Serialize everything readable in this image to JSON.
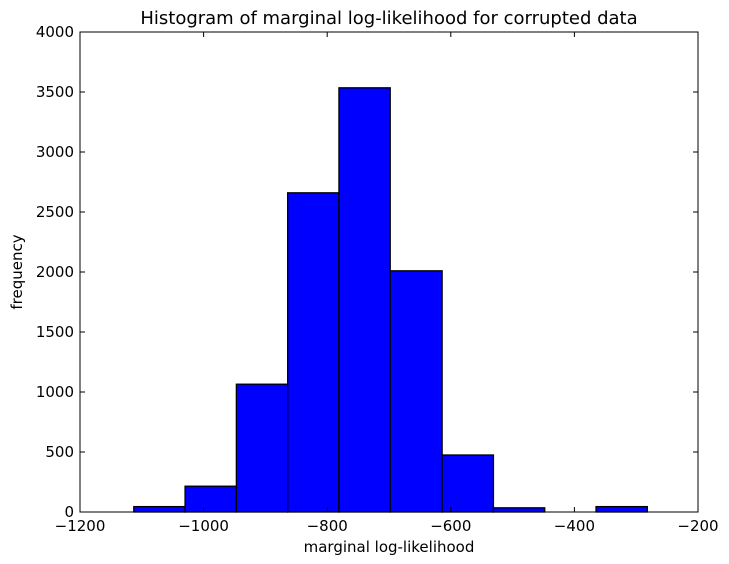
{
  "chart_data": {
    "type": "bar",
    "title": "Histogram of marginal log-likelihood for corrupted data",
    "xlabel": "marginal log-likelihood",
    "ylabel": "frequency",
    "xlim": [
      -1200,
      -200
    ],
    "ylim": [
      0,
      4000
    ],
    "x_ticks": [
      -1200,
      -1000,
      -800,
      -600,
      -400,
      -200
    ],
    "x_tick_labels": [
      "−1200",
      "−1000",
      "−800",
      "−600",
      "−400",
      "−200"
    ],
    "y_ticks": [
      0,
      500,
      1000,
      1500,
      2000,
      2500,
      3000,
      3500,
      4000
    ],
    "y_tick_labels": [
      "0",
      "500",
      "1000",
      "1500",
      "2000",
      "2500",
      "3000",
      "3500",
      "4000"
    ],
    "bar_color": "#0000ff",
    "bins": [
      {
        "x0": -1113,
        "x1": -1030,
        "value": 45
      },
      {
        "x0": -1030,
        "x1": -947,
        "value": 215
      },
      {
        "x0": -947,
        "x1": -864,
        "value": 1065
      },
      {
        "x0": -864,
        "x1": -781,
        "value": 2660
      },
      {
        "x0": -781,
        "x1": -698,
        "value": 3535
      },
      {
        "x0": -698,
        "x1": -614,
        "value": 2010
      },
      {
        "x0": -614,
        "x1": -531,
        "value": 475
      },
      {
        "x0": -531,
        "x1": -448,
        "value": 35
      },
      {
        "x0": -448,
        "x1": -365,
        "value": 0
      },
      {
        "x0": -365,
        "x1": -282,
        "value": 45
      }
    ],
    "grid": false
  }
}
